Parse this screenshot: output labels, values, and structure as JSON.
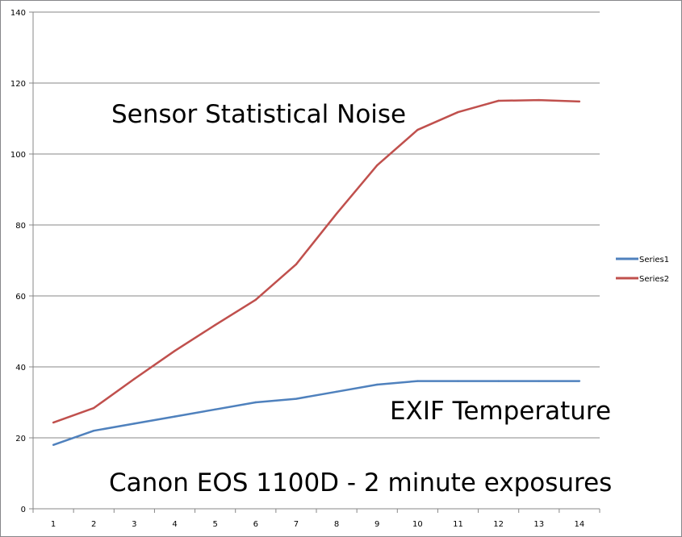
{
  "chart_data": {
    "type": "line",
    "title": "",
    "xlabel": "",
    "ylabel": "",
    "x": [
      1,
      2,
      3,
      4,
      5,
      6,
      7,
      8,
      9,
      10,
      11,
      12,
      13,
      14
    ],
    "ylim": [
      0,
      140
    ],
    "yticks": [
      0,
      20,
      40,
      60,
      80,
      100,
      120,
      140
    ],
    "grid": true,
    "legend": "right",
    "series": [
      {
        "name": "Series1",
        "color": "#4f81bd",
        "values": [
          18,
          22,
          24,
          26,
          28,
          30,
          31,
          33,
          35,
          36,
          36,
          36,
          36,
          36
        ]
      },
      {
        "name": "Series2",
        "color": "#c0504d",
        "values": [
          24.3,
          28.4,
          36.6,
          44.5,
          51.8,
          58.9,
          68.9,
          83.2,
          96.8,
          106.8,
          111.8,
          115,
          115.2,
          114.8
        ]
      }
    ],
    "annotations": [
      {
        "text": "Sensor Statistical Noise"
      },
      {
        "text": "EXIF Temperature"
      },
      {
        "text": "Canon EOS 1100D - 2 minute exposures"
      }
    ]
  }
}
